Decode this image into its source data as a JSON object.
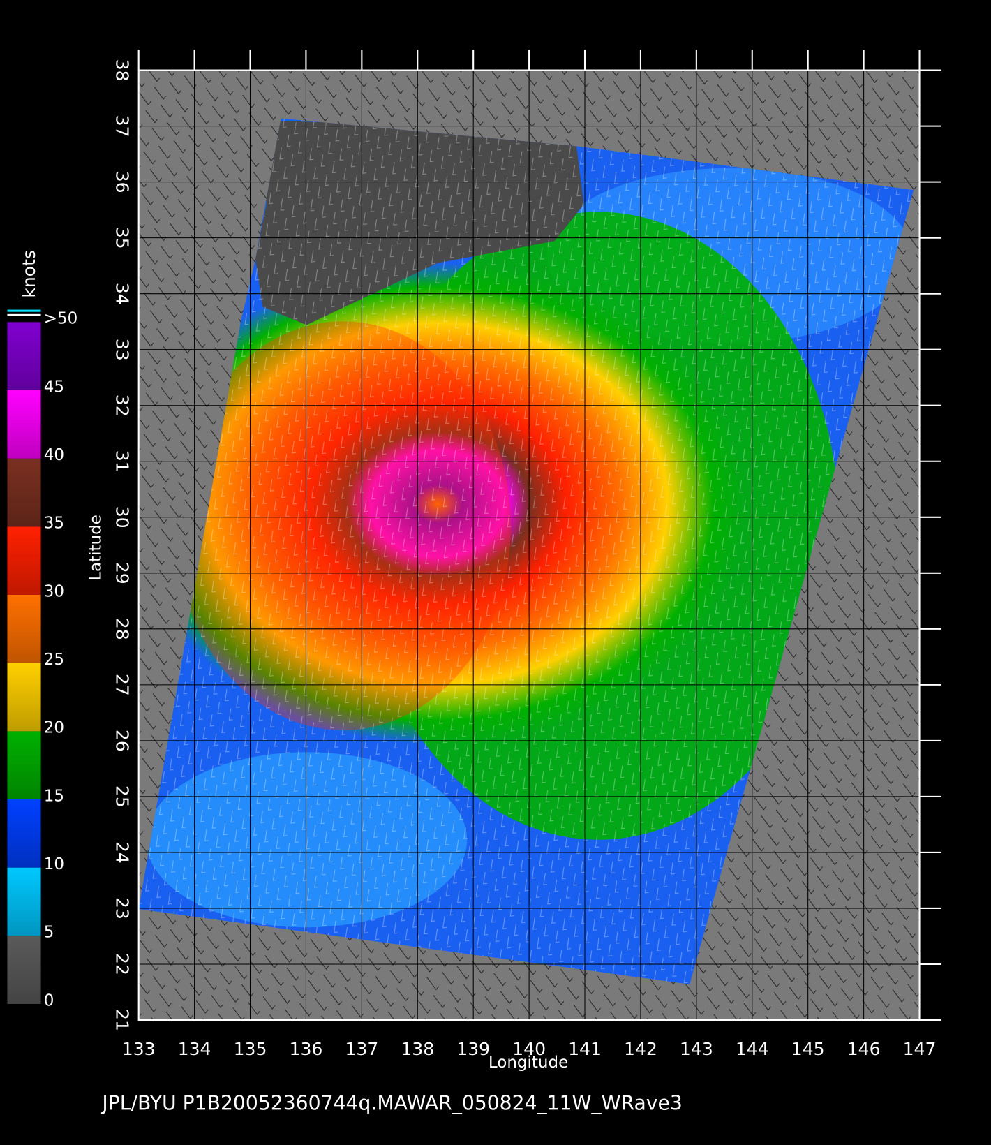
{
  "map": {
    "caption": "JPL/BYU  P1B20052360744q.MAWAR_050824_11W_WRave3",
    "xlabel": "Longitude",
    "ylabel": "Latitude",
    "xlim": [
      133,
      147
    ],
    "ylim": [
      21,
      38
    ],
    "xticks": [
      133,
      134,
      135,
      136,
      137,
      138,
      139,
      140,
      141,
      142,
      143,
      144,
      145,
      146,
      147
    ],
    "yticks": [
      21,
      22,
      23,
      24,
      25,
      26,
      27,
      28,
      29,
      30,
      31,
      32,
      33,
      34,
      35,
      36,
      37,
      38
    ],
    "colorbar": {
      "label": "knots",
      "lim": [
        0,
        50
      ],
      "ticks": [
        0,
        5,
        10,
        15,
        20,
        25,
        30,
        35,
        40,
        45,
        {
          "value": 50,
          "label": ">50"
        }
      ],
      "colors": [
        "#5a5a5a",
        "#00c8ff",
        "#0040ff",
        "#00b000",
        "#ffd000",
        "#ff7000",
        "#ff2000",
        "#7a3020",
        "#ff00ff",
        "#8000d0"
      ]
    }
  }
}
